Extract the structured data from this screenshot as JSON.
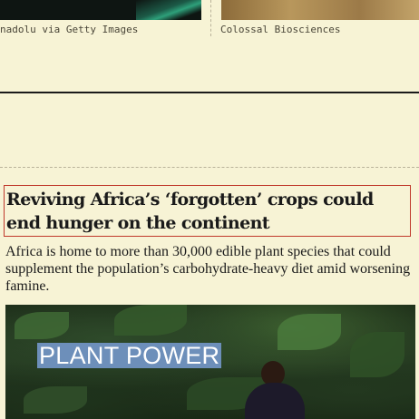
{
  "top_credits": {
    "left": "nadolu via Getty Images",
    "right": "Colossal Biosciences"
  },
  "article": {
    "headline": "Reviving Africa’s ‘forgotten’ crops could end hunger on the continent",
    "summary": "Africa is home to more than 30,000 edible plant species that could supplement the population’s carbohydrate-heavy diet amid worsening famine.",
    "image_label": "PLANT POWER"
  },
  "colors": {
    "background": "#f7f3d5",
    "focus_outline": "#c0392b",
    "label_bg": "#6d8fba"
  }
}
